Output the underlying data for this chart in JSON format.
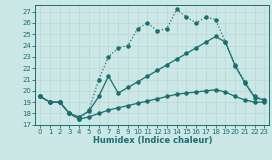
{
  "xlabel": "Humidex (Indice chaleur)",
  "background_color": "#cce8e6",
  "grid_color": "#b8d8d6",
  "line_color": "#1a6e6e",
  "xlim": [
    -0.5,
    23.5
  ],
  "ylim": [
    17,
    27.6
  ],
  "yticks": [
    17,
    18,
    19,
    20,
    21,
    22,
    23,
    24,
    25,
    26,
    27
  ],
  "xticks": [
    0,
    1,
    2,
    3,
    4,
    5,
    6,
    7,
    8,
    9,
    10,
    11,
    12,
    13,
    14,
    15,
    16,
    17,
    18,
    19,
    20,
    21,
    22,
    23
  ],
  "line_top_x": [
    0,
    1,
    2,
    3,
    4,
    5,
    6,
    7,
    8,
    9,
    10,
    11,
    12,
    13,
    14,
    15,
    16,
    17,
    18,
    19,
    20,
    21,
    22,
    23
  ],
  "line_top_y": [
    19.5,
    19.0,
    19.0,
    18.0,
    17.5,
    18.3,
    21.0,
    23.0,
    23.8,
    24.0,
    25.5,
    26.0,
    25.3,
    25.5,
    27.2,
    26.5,
    26.0,
    26.5,
    26.3,
    24.3,
    22.3,
    20.8,
    19.5,
    19.2
  ],
  "line_mid_x": [
    0,
    1,
    2,
    3,
    4,
    5,
    6,
    7,
    8,
    9,
    10,
    11,
    12,
    13,
    14,
    15,
    16,
    17,
    18,
    19,
    20,
    21,
    22,
    23
  ],
  "line_mid_y": [
    19.5,
    19.0,
    19.0,
    18.0,
    17.7,
    18.2,
    19.5,
    21.3,
    19.8,
    20.3,
    20.8,
    21.3,
    21.8,
    22.3,
    22.8,
    23.3,
    23.8,
    24.3,
    24.8,
    24.3,
    22.2,
    20.7,
    19.4,
    19.2
  ],
  "line_bot_x": [
    0,
    1,
    2,
    3,
    4,
    5,
    6,
    7,
    8,
    9,
    10,
    11,
    12,
    13,
    14,
    15,
    16,
    17,
    18,
    19,
    20,
    21,
    22,
    23
  ],
  "line_bot_y": [
    19.5,
    19.0,
    19.0,
    18.0,
    17.5,
    17.7,
    18.0,
    18.3,
    18.5,
    18.7,
    18.9,
    19.1,
    19.3,
    19.5,
    19.7,
    19.8,
    19.9,
    20.0,
    20.1,
    19.9,
    19.5,
    19.2,
    19.0,
    19.0
  ]
}
